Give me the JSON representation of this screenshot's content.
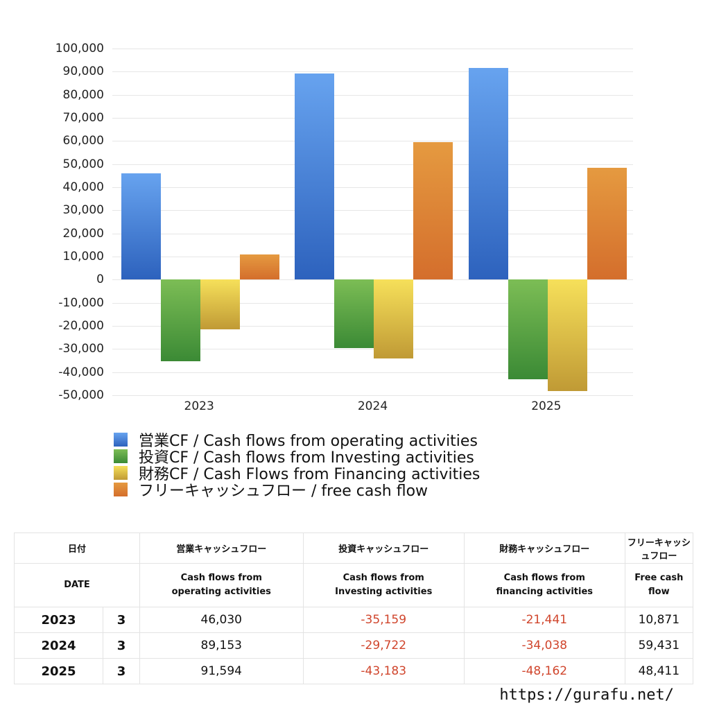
{
  "chart_data": {
    "type": "bar",
    "title": "",
    "xlabel": "",
    "ylabel": "",
    "ylim": [
      -50000,
      100000
    ],
    "yticks": [
      100000,
      90000,
      80000,
      70000,
      60000,
      50000,
      40000,
      30000,
      20000,
      10000,
      0,
      -10000,
      -20000,
      -30000,
      -40000,
      -50000
    ],
    "ytick_labels": [
      "100,000",
      "90,000",
      "80,000",
      "70,000",
      "60,000",
      "50,000",
      "40,000",
      "30,000",
      "20,000",
      "10,000",
      "0",
      "-10,000",
      "-20,000",
      "-30,000",
      "-40,000",
      "-50,000"
    ],
    "grid": true,
    "legend_position": "bottom",
    "categories": [
      "2023",
      "2024",
      "2025"
    ],
    "series": [
      {
        "name": "営業CF / Cash flows from operating activities",
        "color": "#3b74d1",
        "values": [
          46030,
          89153,
          91594
        ]
      },
      {
        "name": "投資CF / Cash flows from Investing activities",
        "color": "#55a444",
        "values": [
          -35159,
          -29722,
          -43183
        ]
      },
      {
        "name": "財務CF / Cash Flows from Financing activities",
        "color": "#e2c640",
        "values": [
          -21441,
          -34038,
          -48162
        ]
      },
      {
        "name": "フリーキャッシュフロー / free cash flow",
        "color": "#dd8030",
        "values": [
          10871,
          59431,
          48411
        ]
      }
    ]
  },
  "legend": {
    "items": [
      "営業CF / Cash flows from operating activities",
      "投資CF / Cash flows from Investing activities",
      "財務CF / Cash Flows from Financing activities",
      "フリーキャッシュフロー / free cash flow"
    ]
  },
  "table": {
    "headers_jp": [
      "日付",
      "営業キャッシュフロー",
      "投資キャッシュフロー",
      "財務キャッシュフロー",
      "フリーキャッシュフロー"
    ],
    "headers_en": [
      "DATE",
      "Cash flows from operating activities",
      "Cash flows from Investing activities",
      "Cash flows from financing activities",
      "Free cash flow"
    ],
    "rows": [
      {
        "year": "2023",
        "month": "3",
        "operating": "46,030",
        "investing": "-35,159",
        "financing": "-21,441",
        "free": "10,871"
      },
      {
        "year": "2024",
        "month": "3",
        "operating": "89,153",
        "investing": "-29,722",
        "financing": "-34,038",
        "free": "59,431"
      },
      {
        "year": "2025",
        "month": "3",
        "operating": "91,594",
        "investing": "-43,183",
        "financing": "-48,162",
        "free": "48,411"
      }
    ]
  },
  "footer": {
    "url": "https://gurafu.net/"
  }
}
